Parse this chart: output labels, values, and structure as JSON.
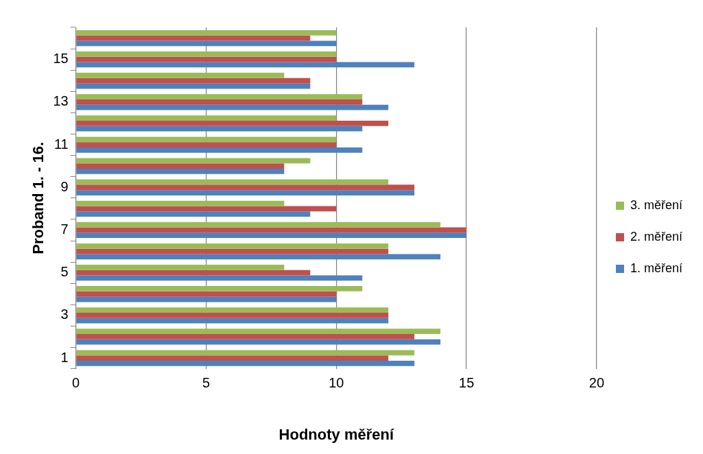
{
  "chart_data": {
    "type": "bar",
    "orientation": "horizontal",
    "xlabel": "Hodnoty měření",
    "ylabel": "Proband 1. - 16.",
    "categories": [
      null,
      "15",
      null,
      "13",
      null,
      "11",
      null,
      "9",
      null,
      "7",
      null,
      "5",
      null,
      "3",
      null,
      "1"
    ],
    "series": [
      {
        "name": "3. měření",
        "color": "#9bbb59",
        "values": [
          10,
          10,
          8,
          11,
          10,
          10,
          9,
          12,
          8,
          14,
          12,
          8,
          11,
          12,
          14,
          13
        ]
      },
      {
        "name": "2. měření",
        "color": "#c0504d",
        "values": [
          9,
          10,
          9,
          11,
          12,
          10,
          8,
          13,
          10,
          15,
          12,
          9,
          10,
          12,
          13,
          12
        ]
      },
      {
        "name": "1. měření",
        "color": "#4f81bd",
        "values": [
          10,
          13,
          9,
          12,
          11,
          11,
          8,
          13,
          9,
          15,
          14,
          11,
          10,
          12,
          14,
          13
        ]
      }
    ],
    "xlim": [
      0,
      20
    ],
    "xticks": [
      0,
      5,
      10,
      15,
      20
    ],
    "grid": "x",
    "legend": "right"
  }
}
